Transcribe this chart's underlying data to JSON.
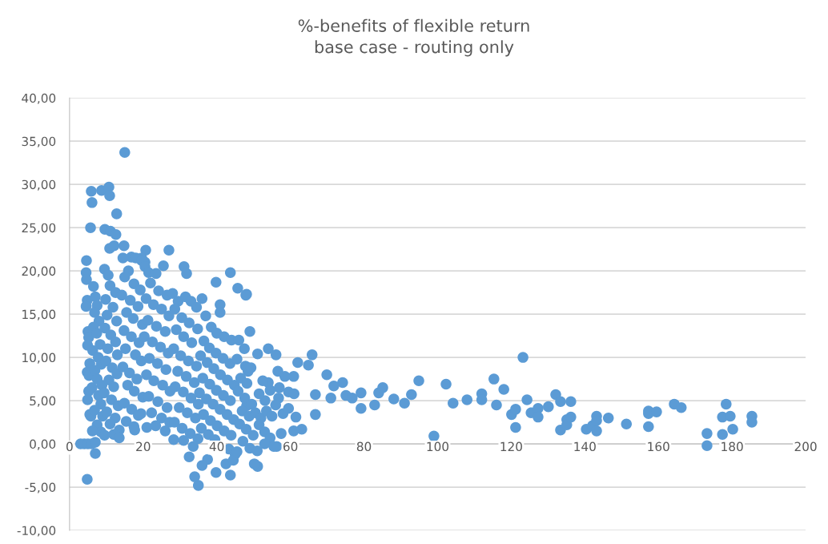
{
  "chart_data": {
    "type": "scatter",
    "title": "%-benefits of flexible return\nbase case - routing only",
    "xlim": [
      0,
      200
    ],
    "xticks": [
      0,
      20,
      40,
      60,
      80,
      100,
      120,
      140,
      160,
      180,
      200
    ],
    "ylim": [
      -10,
      40
    ],
    "yticks": [
      {
        "value": -10,
        "label": "-10,00"
      },
      {
        "value": -5,
        "label": "-5,00"
      },
      {
        "value": 0,
        "label": "0,00"
      },
      {
        "value": 5,
        "label": "5,00"
      },
      {
        "value": 10,
        "label": "10,00"
      },
      {
        "value": 15,
        "label": "15,00"
      },
      {
        "value": 20,
        "label": "20,00"
      },
      {
        "value": 25,
        "label": "25,00"
      },
      {
        "value": 30,
        "label": "30,00"
      },
      {
        "value": 35,
        "label": "35,00"
      },
      {
        "value": 40,
        "label": "40,00"
      }
    ],
    "grid": "y",
    "marker": "circle",
    "legend": false,
    "series": [
      {
        "color": "#5b9bd5",
        "x": [
          15.0,
          5.9,
          6.1,
          8.7,
          10.7,
          10.9,
          12.8,
          5.7,
          9.6,
          11.1,
          12.6,
          10.9,
          12.1,
          14.8,
          20.7,
          27.0,
          4.6,
          16.8,
          19.6,
          20.5,
          31.1,
          31.8,
          43.7,
          39.8,
          45.7,
          48.1,
          123.2,
          99.0,
          173.2,
          173.2,
          94.9,
          102.3,
          88.1,
          91.0,
          92.9,
          104.2,
          108.0,
          112.0,
          112.0,
          115.3,
          116.0,
          118.0,
          120.1,
          121.2,
          121.2,
          124.3,
          125.4,
          127.3,
          127.3,
          130.1,
          132.1,
          133.4,
          133.4,
          135.1,
          135.1,
          136.2,
          136.2,
          140.4,
          142.1,
          143.2,
          143.2,
          143.2,
          146.4,
          151.3,
          157.3,
          157.3,
          157.3,
          159.5,
          164.3,
          166.2,
          177.4,
          177.4,
          178.4,
          179.5,
          180.2,
          185.4,
          185.4,
          69.9,
          74.2,
          71.8,
          71.0,
          75.1,
          76.8,
          79.2,
          79.2,
          82.9,
          84.0,
          85.1,
          65.9,
          64.9,
          66.8,
          66.8,
          62.0,
          60.9,
          63.1,
          60.9,
          59.8,
          56.6,
          54.0,
          51.1,
          56.1,
          54.0,
          53.1,
          56.8,
          49.0,
          47.9,
          40.9,
          40.9,
          51.1,
          43.7,
          39.8,
          35.0,
          34.0,
          48.1,
          48.5,
          4.8,
          7.0,
          4.5,
          4.6,
          4.8,
          4.5,
          5.0,
          5.2,
          4.9,
          5.5,
          4.8,
          5.3,
          5.2,
          4.9,
          5.5,
          5.8,
          3.0,
          4.0,
          5.0,
          6.0,
          7.0,
          6.5,
          7.0,
          7.5,
          6.8,
          8.0,
          6.5,
          7.4,
          8.3,
          6.3,
          7.8,
          8.6,
          6.9,
          7.5,
          8.8,
          6.1,
          7.9,
          8.5,
          6.8,
          9.0,
          7.5,
          8.5,
          9.5,
          6.2,
          9.5,
          10.5,
          11.0,
          12.5,
          9.8,
          11.8,
          10.2,
          12.8,
          9.6,
          11.2,
          12.5,
          10.4,
          13.0,
          9.9,
          11.6,
          12.9,
          10.7,
          12.0,
          9.4,
          11.4,
          13.2,
          10.1,
          12.4,
          11.0,
          13.5,
          12.0,
          13.5,
          14.5,
          16.0,
          18.0,
          19.6,
          15.0,
          17.5,
          19.2,
          14.2,
          16.5,
          18.6,
          15.5,
          17.3,
          19.8,
          14.8,
          16.8,
          18.9,
          15.2,
          17.9,
          19.5,
          14.5,
          16.3,
          18.3,
          15.8,
          17.6,
          19.9,
          14.9,
          16.9,
          18.7,
          15.4,
          17.5,
          19.4,
          17.7,
          20.5,
          21.5,
          23.5,
          25.5,
          22.0,
          24.2,
          26.5,
          20.8,
          22.8,
          25.0,
          27.0,
          21.3,
          23.6,
          26.0,
          20.3,
          22.5,
          24.7,
          26.8,
          21.7,
          23.9,
          26.2,
          20.9,
          22.9,
          25.3,
          27.3,
          21.5,
          24.0,
          26.5,
          22.3,
          25.0,
          27.2,
          23.4,
          26.0,
          21.0,
          28.0,
          29.5,
          31.5,
          33.0,
          34.5,
          28.6,
          30.5,
          32.5,
          34.8,
          29.0,
          31.0,
          33.2,
          28.3,
          30.2,
          32.3,
          34.5,
          29.4,
          31.7,
          33.9,
          28.7,
          30.9,
          33.0,
          35.0,
          29.8,
          32.0,
          34.2,
          28.5,
          30.6,
          32.8,
          34.9,
          28.3,
          31.0,
          33.6,
          32.5,
          36.0,
          37.0,
          38.5,
          40.0,
          42.0,
          44.0,
          36.5,
          38.0,
          39.8,
          41.7,
          43.6,
          35.6,
          37.4,
          39.2,
          41.0,
          42.9,
          44.8,
          36.2,
          38.1,
          39.9,
          41.8,
          43.7,
          35.3,
          37.2,
          39.0,
          40.9,
          42.8,
          44.6,
          36.4,
          38.3,
          40.1,
          42.0,
          43.9,
          35.8,
          37.7,
          39.5,
          41.4,
          43.3,
          45.0,
          37.5,
          36.0,
          42.5,
          44.5,
          46.0,
          47.5,
          45.5,
          47.8,
          49.3,
          46.5,
          48.2,
          45.8,
          47.6,
          49.5,
          46.9,
          48.8,
          50.5,
          52.0,
          53.5,
          55.0,
          46.2,
          48.0,
          49.9,
          51.5,
          53.0,
          54.5,
          56.3,
          47.1,
          49.0,
          51.0,
          53.0,
          55.5,
          57.5,
          58.0,
          56.0,
          51.5,
          52.5,
          54.5,
          57.0,
          59.5,
          61.0,
          59.5,
          58.5,
          61.5,
          45.5,
          50.2
        ],
        "values": [
          33.7,
          29.2,
          27.9,
          29.3,
          29.7,
          28.7,
          26.6,
          25.0,
          24.8,
          24.6,
          24.2,
          22.6,
          22.9,
          22.9,
          22.4,
          22.4,
          21.2,
          21.6,
          21.5,
          21.0,
          20.5,
          19.7,
          19.8,
          18.7,
          18.0,
          17.3,
          10.0,
          0.9,
          -0.2,
          1.2,
          7.3,
          6.9,
          5.2,
          4.7,
          5.7,
          4.7,
          5.1,
          5.8,
          5.1,
          7.5,
          4.5,
          6.3,
          3.4,
          4.0,
          1.9,
          5.1,
          3.6,
          4.1,
          3.1,
          4.3,
          5.7,
          4.9,
          1.6,
          2.8,
          2.2,
          4.9,
          3.1,
          1.7,
          2.1,
          3.2,
          1.5,
          2.7,
          3.0,
          2.3,
          3.8,
          3.5,
          2.0,
          3.7,
          4.6,
          4.2,
          1.1,
          3.1,
          4.6,
          3.2,
          1.7,
          3.2,
          2.5,
          8.0,
          7.1,
          6.7,
          5.3,
          5.6,
          5.3,
          5.9,
          4.1,
          4.5,
          5.9,
          6.5,
          10.3,
          9.1,
          5.7,
          3.4,
          9.4,
          7.8,
          1.7,
          1.5,
          null,
          8.4,
          11.0,
          10.4,
          10.3,
          7.1,
          5.0,
          5.3,
          13.0,
          17.2,
          16.1,
          15.2,
          -2.6,
          -3.6,
          -3.3,
          -4.8,
          -3.8,
          4.4,
          8.4,
          -4.1,
          -1.1,
          19.8,
          19.0,
          16.6,
          15.9,
          13.0,
          12.3,
          11.4,
          9.3,
          8.3,
          7.9,
          6.1,
          5.1,
          3.4,
          3.2,
          0.0,
          0.0,
          0.0,
          0.0,
          0.2,
          18.2,
          17.0,
          16.0,
          15.2,
          14.2,
          13.5,
          12.8,
          11.5,
          10.8,
          10.0,
          9.2,
          8.5,
          7.5,
          6.8,
          6.5,
          5.6,
          4.6,
          3.9,
          3.2,
          2.2,
          1.4,
          1.0,
          1.5,
          20.2,
          19.5,
          18.3,
          17.5,
          16.7,
          15.8,
          14.9,
          14.2,
          13.4,
          12.6,
          11.8,
          11.0,
          10.3,
          9.6,
          8.8,
          8.1,
          7.4,
          6.6,
          5.9,
          5.1,
          4.4,
          3.7,
          3.0,
          2.3,
          1.6,
          1.1,
          0.7,
          21.5,
          20.0,
          21.5,
          21.2,
          19.3,
          18.5,
          17.8,
          17.2,
          16.6,
          15.9,
          15.2,
          14.5,
          13.8,
          13.1,
          12.4,
          11.7,
          11.0,
          10.3,
          9.6,
          8.9,
          8.2,
          7.5,
          6.8,
          6.1,
          5.4,
          4.7,
          4.0,
          3.3,
          2.6,
          2.0,
          3.5,
          1.6,
          20.5,
          19.8,
          19.7,
          20.6,
          18.6,
          17.7,
          17.2,
          16.8,
          16.1,
          15.6,
          14.8,
          14.3,
          13.6,
          13.0,
          12.4,
          11.8,
          11.2,
          10.5,
          9.9,
          9.3,
          8.6,
          8.0,
          7.3,
          6.8,
          6.1,
          5.5,
          4.9,
          4.2,
          3.6,
          3.0,
          2.5,
          2.1,
          1.5,
          1.9,
          17.4,
          16.5,
          17.0,
          16.5,
          15.8,
          15.6,
          14.6,
          14.0,
          13.3,
          13.2,
          12.4,
          11.7,
          11.0,
          10.2,
          9.6,
          9.0,
          8.4,
          7.8,
          7.1,
          6.6,
          6.0,
          5.3,
          4.6,
          4.2,
          3.6,
          3.0,
          2.5,
          1.8,
          1.2,
          0.6,
          0.5,
          0.4,
          -0.3,
          -1.5,
          16.8,
          14.8,
          13.5,
          12.8,
          12.4,
          12.0,
          11.9,
          11.1,
          10.5,
          9.9,
          9.3,
          10.2,
          9.4,
          8.7,
          8.0,
          7.4,
          6.8,
          7.6,
          6.9,
          6.2,
          5.6,
          5.0,
          5.9,
          5.2,
          4.6,
          4.0,
          3.4,
          2.8,
          3.4,
          2.7,
          2.1,
          1.5,
          1.0,
          1.8,
          1.1,
          0.5,
          null,
          -0.6,
          -1.2,
          -1.8,
          -2.5,
          -2.3,
          -1.9,
          12.0,
          11.0,
          9.8,
          9.0,
          8.8,
          7.6,
          7.0,
          6.1,
          5.3,
          4.6,
          3.8,
          3.2,
          3.6,
          3.0,
          3.8,
          3.2,
          2.3,
          1.7,
          1.0,
          2.2,
          1.4,
          0.7,
          -0.3,
          0.3,
          -0.5,
          -0.8,
          0.0,
          -0.3,
          1.2,
          3.5,
          4.5,
          5.8,
          7.3,
          6.2,
          6.5,
          6.0,
          5.8,
          4.1,
          7.8,
          3.1,
          -0.9,
          -2.3
        ]
      }
    ]
  }
}
